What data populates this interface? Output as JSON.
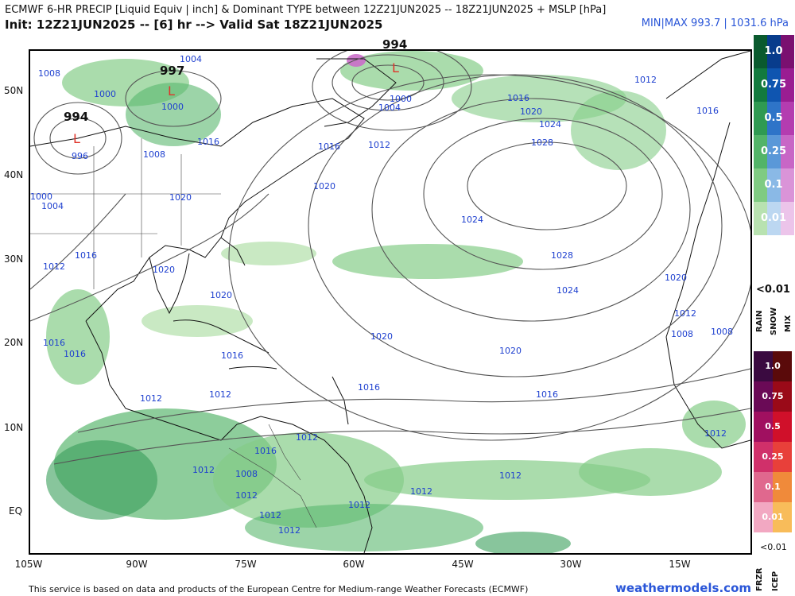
{
  "header": {
    "title": "ECMWF 6-HR PRECIP [Liquid Equiv | inch] & Dominant TYPE between 12Z21JUN2025 -- 18Z21JUN2025 + MSLP [hPa]",
    "subtitle": "Init: 12Z21JUN2025 -- [6] hr --> Valid Sat 18Z21JUN2025",
    "minmax": "MIN|MAX 993.7 | 1031.6 hPa"
  },
  "axes": {
    "lat_labels": [
      "50N",
      "40N",
      "30N",
      "20N",
      "10N",
      "EQ"
    ],
    "lon_labels": [
      "105W",
      "90W",
      "75W",
      "60W",
      "45W",
      "30W",
      "15W"
    ]
  },
  "isobar_labels": [
    "1008",
    "1004",
    "1000",
    "1000",
    "1008",
    "1016",
    "1020",
    "1000",
    "1004",
    "1012",
    "1016",
    "1020",
    "1016",
    "1012",
    "1016",
    "1020",
    "1020",
    "1024",
    "1028",
    "1012",
    "1016",
    "1024",
    "1028",
    "1024",
    "1020",
    "1012",
    "1008",
    "1008",
    "1020",
    "1016",
    "1016",
    "1012",
    "1012",
    "1016",
    "1012",
    "1012",
    "1016",
    "1012",
    "1008",
    "1012",
    "1012",
    "1012",
    "1012",
    "1012",
    "1012",
    "1020",
    "1016",
    "996",
    "1004",
    "1000",
    "1016",
    "1020"
  ],
  "pressure_centers": [
    {
      "value": "997",
      "low": "L"
    },
    {
      "value": "994",
      "low": "L"
    },
    {
      "value": "994",
      "low": "L"
    }
  ],
  "legend": {
    "precip_levels": [
      "1.0",
      "0.75",
      "0.5",
      "0.25",
      "0.1",
      "0.01"
    ],
    "below_min": "<0.01",
    "top_types": [
      "RAIN",
      "SNOW",
      "MIX"
    ],
    "bottom_types": [
      "FRZR",
      "ICEP"
    ],
    "colors": {
      "rain": [
        "#0a5a2e",
        "#127a3e",
        "#2f9a52",
        "#52b468",
        "#7fcb82",
        "#b8e2b0"
      ],
      "snow": [
        "#083c8c",
        "#0f55b0",
        "#2e74c8",
        "#5a98d8",
        "#8ab9e6",
        "#bcd7f1"
      ],
      "mix": [
        "#7a1070",
        "#9a1d92",
        "#b43cb0",
        "#c866c6",
        "#da94d8",
        "#ecc4ea"
      ],
      "frzr": [
        "#3a0a40",
        "#6a0a56",
        "#a01060",
        "#d0306a",
        "#e0688e",
        "#f2a8c2"
      ],
      "icep": [
        "#5a0a0a",
        "#9a0a18",
        "#d0102a",
        "#e8403a",
        "#f08a3a",
        "#f8bc5a"
      ]
    }
  },
  "footer": {
    "credit": "This service is based on data and products of the European Centre for Medium-range Weather Forecasts (ECMWF)",
    "brand": "weathermodels.com"
  }
}
